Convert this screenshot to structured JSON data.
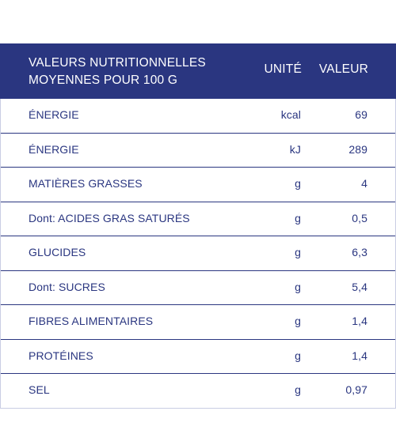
{
  "header": {
    "title_line1": "VALEURS NUTRITIONNELLES",
    "title_line2": "MOYENNES POUR 100 G",
    "unit_label": "UNITÉ",
    "value_label": "VALEUR"
  },
  "rows": [
    {
      "name": "ÉNERGIE",
      "unit": "kcal",
      "value": "69"
    },
    {
      "name": "ÉNERGIE",
      "unit": "kJ",
      "value": "289"
    },
    {
      "name": "MATIÈRES GRASSES",
      "unit": "g",
      "value": "4"
    },
    {
      "name": "Dont: ACIDES GRAS SATURÉS",
      "unit": "g",
      "value": "0,5"
    },
    {
      "name": "GLUCIDES",
      "unit": "g",
      "value": "6,3"
    },
    {
      "name": "Dont: SUCRES",
      "unit": "g",
      "value": "5,4"
    },
    {
      "name": "FIBRES ALIMENTAIRES",
      "unit": "g",
      "value": "1,4"
    },
    {
      "name": "PROTÉINES",
      "unit": "g",
      "value": "1,4"
    },
    {
      "name": "SEL",
      "unit": "g",
      "value": "0,97"
    }
  ],
  "colors": {
    "header_bg": "#2a3680",
    "text": "#2a3680",
    "header_text": "#ffffff"
  }
}
